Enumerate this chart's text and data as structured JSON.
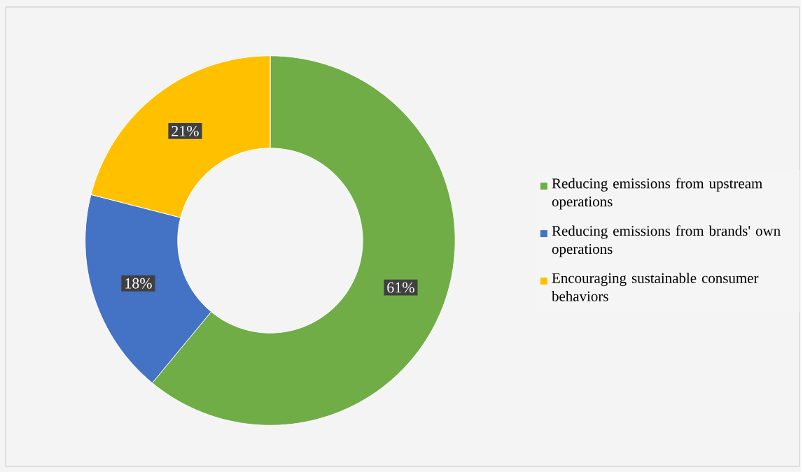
{
  "chart_data": {
    "type": "donut",
    "categories": [
      "Reducing emissions from upstream operations",
      "Reducing emissions from brands' own operations",
      "Encouraging sustainable consumer behaviors"
    ],
    "values": [
      61,
      18,
      21
    ],
    "colors": [
      "#70ad47",
      "#4472c4",
      "#ffc000"
    ],
    "value_labels": [
      "61%",
      "18%",
      "21%"
    ],
    "legend": "right"
  }
}
